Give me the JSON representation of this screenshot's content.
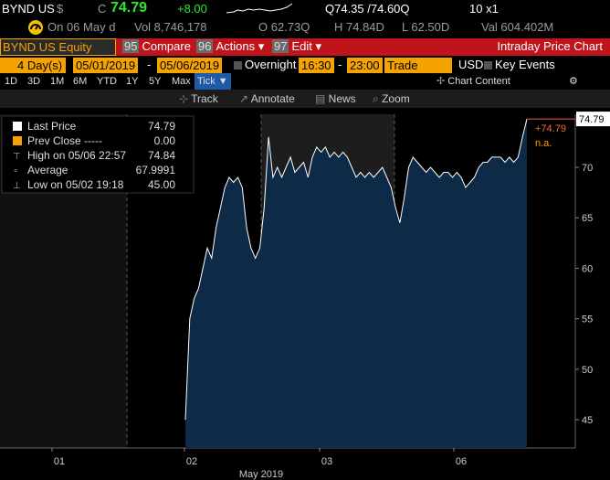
{
  "header": {
    "ticker": "BYND US",
    "currency": "$",
    "close_label": "C",
    "close": "74.79",
    "change": "+8.00",
    "quote": "Q74.35 /74.60Q",
    "size": "10 x1"
  },
  "header2": {
    "date": "On 06 May d",
    "volume": "Vol 8,746,178",
    "open": "O 62.73Q",
    "high": "H 74.84D",
    "low": "L 62.50D",
    "value": "Val 604.402M"
  },
  "toolbar": {
    "security": "BYND US Equity",
    "menus": [
      {
        "key": "95",
        "label": "Compare"
      },
      {
        "key": "96",
        "label": "Actions ▾"
      },
      {
        "key": "97",
        "label": "Edit ▾"
      }
    ],
    "title": "Intraday Price Chart"
  },
  "range": {
    "count": "4",
    "unit": "Day(s)",
    "start": "05/01/2019",
    "separator": "-",
    "end": "05/06/2019",
    "overnight": "Overnight",
    "from": "16:30",
    "to": "23:00",
    "field": "Trade",
    "currency": "USD",
    "key_events": "Key Events"
  },
  "periods": [
    "1D",
    "3D",
    "1M",
    "6M",
    "YTD",
    "1Y",
    "5Y",
    "Max",
    "Tick ▼"
  ],
  "selected_period": "Tick ▼",
  "chart_content": "Chart Content",
  "tools": [
    "Track",
    "Annotate",
    "News",
    "Zoom"
  ],
  "chart": {
    "type": "line",
    "legend": [
      {
        "name": "Last Price",
        "value": "74.79",
        "color": "#ffffff"
      },
      {
        "name": "Prev Close -----",
        "value": "0.00",
        "color": "#f4a300"
      },
      {
        "name": "High on 05/06 22:57",
        "value": "74.84"
      },
      {
        "name": "Average",
        "value": "67.9991"
      },
      {
        "name": "Low on 05/02 19:18",
        "value": "45.00"
      }
    ],
    "x_labels": [
      "01",
      "02",
      "03",
      "06"
    ],
    "x_title": "May 2019",
    "ylim": [
      42.2,
      75.25
    ],
    "yticks": [
      45,
      50,
      55,
      60,
      65,
      70
    ],
    "last_value": 74.79,
    "last_change": "+74.79",
    "last_note": "n.a.",
    "series": {
      "name": "Last Price",
      "color": "#ffffff",
      "fill": "#0d2a47",
      "values": [
        45,
        55,
        57,
        58,
        60,
        62,
        61,
        64,
        66,
        68,
        69,
        68.5,
        69,
        68,
        64,
        62,
        61,
        62,
        66,
        73,
        69,
        70,
        69,
        70,
        71,
        69.5,
        70,
        70.5,
        69,
        71,
        72,
        71.5,
        72,
        71,
        71.5,
        71,
        71.5,
        71,
        70,
        69,
        69.5,
        69,
        69.5,
        69,
        69.5,
        70,
        69,
        68,
        66,
        64.5,
        67,
        70,
        71,
        70.5,
        70,
        69.5,
        70,
        69.5,
        69,
        69.5,
        69.5,
        69,
        69.5,
        69,
        68,
        68.5,
        69,
        70,
        70.5,
        70.5,
        71,
        71,
        71,
        70.5,
        71,
        70.5,
        71,
        73,
        74.79
      ]
    }
  }
}
